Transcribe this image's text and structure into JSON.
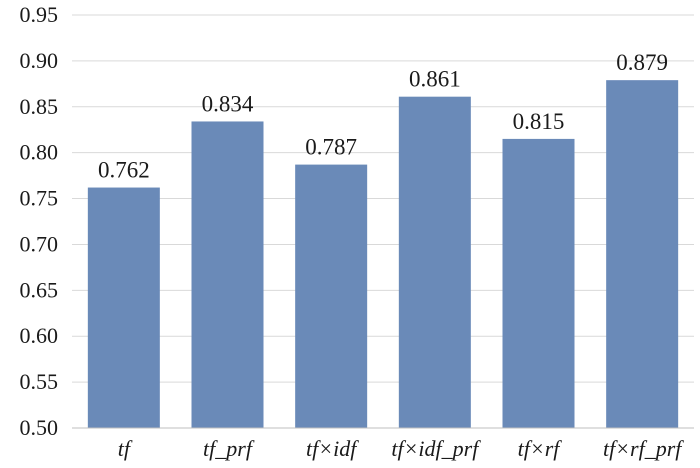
{
  "chart_data": {
    "type": "bar",
    "title": "",
    "xlabel": "",
    "ylabel": "",
    "categories": [
      "tf",
      "tf_prf",
      "tf×idf",
      "tf×idf_prf",
      "tf×rf",
      "tf×rf_prf"
    ],
    "values": [
      0.762,
      0.834,
      0.787,
      0.861,
      0.815,
      0.879
    ],
    "value_labels": [
      "0.762",
      "0.834",
      "0.787",
      "0.861",
      "0.815",
      "0.879"
    ],
    "ylim": [
      0.5,
      0.95
    ],
    "yticks": [
      "0.50",
      "0.55",
      "0.60",
      "0.65",
      "0.70",
      "0.75",
      "0.80",
      "0.85",
      "0.90",
      "0.95"
    ],
    "grid": true,
    "legend": "none",
    "bar_color": "#6a8ab8"
  }
}
